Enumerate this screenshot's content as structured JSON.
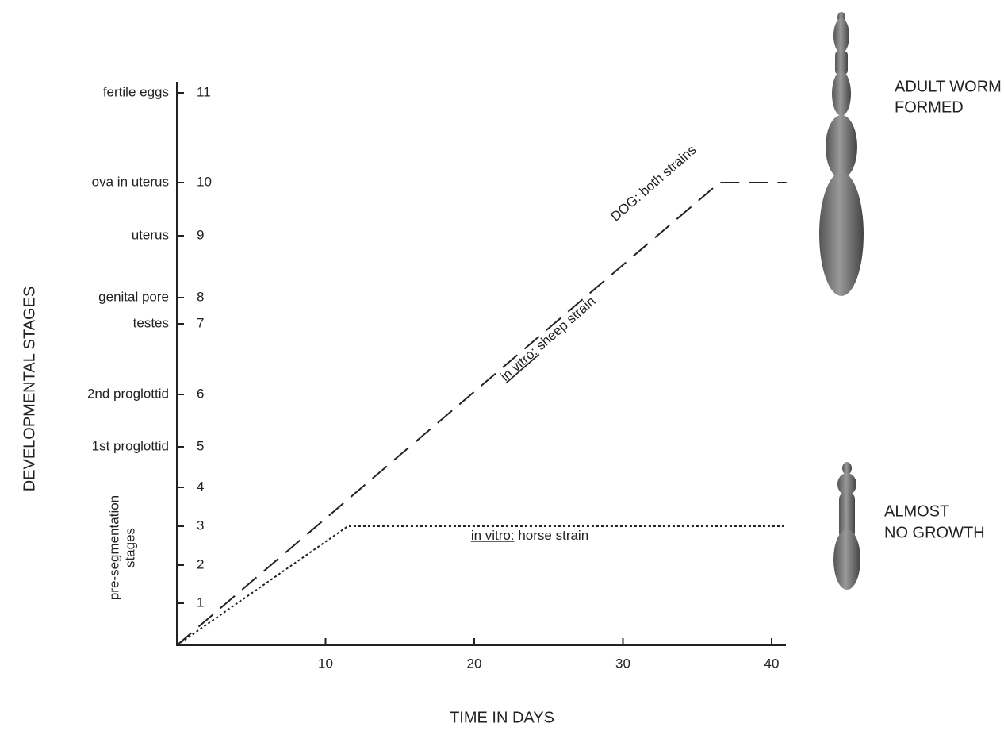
{
  "chart_data": {
    "type": "line",
    "x_label": "TIME IN DAYS",
    "y_label": "DEVELOPMENTAL STAGES",
    "xlim": [
      0,
      41
    ],
    "xticks": [
      10,
      20,
      30,
      40
    ],
    "ylim": [
      0,
      11
    ],
    "yticks": [
      1,
      2,
      3,
      4,
      5,
      6,
      7,
      8,
      9,
      10,
      11
    ],
    "stage_names": [
      null,
      null,
      null,
      null,
      "1st proglottid",
      "2nd proglottid",
      "testes",
      "genital pore",
      "uterus",
      "ova in uterus",
      "fertile eggs"
    ],
    "group_label": [
      "pre-segmentation",
      "stages"
    ],
    "series": [
      {
        "color": "#222222",
        "style": "dashed",
        "x": [
          0,
          36.5,
          41
        ],
        "values": [
          0,
          10,
          10
        ]
      },
      {
        "color": "#222222",
        "style": "dotted",
        "x": [
          0,
          11.5,
          41
        ],
        "values": [
          0,
          3,
          3
        ]
      }
    ],
    "annotations": [
      {
        "text": "DOG: both strains"
      },
      {
        "prefix": "in vitro:",
        "text": "sheep strain"
      },
      {
        "prefix": "in vitro:",
        "text": "horse strain"
      }
    ],
    "side_labels": [
      [
        "ADULT WORM",
        "FORMED"
      ],
      [
        "ALMOST",
        "NO GROWTH"
      ]
    ]
  }
}
